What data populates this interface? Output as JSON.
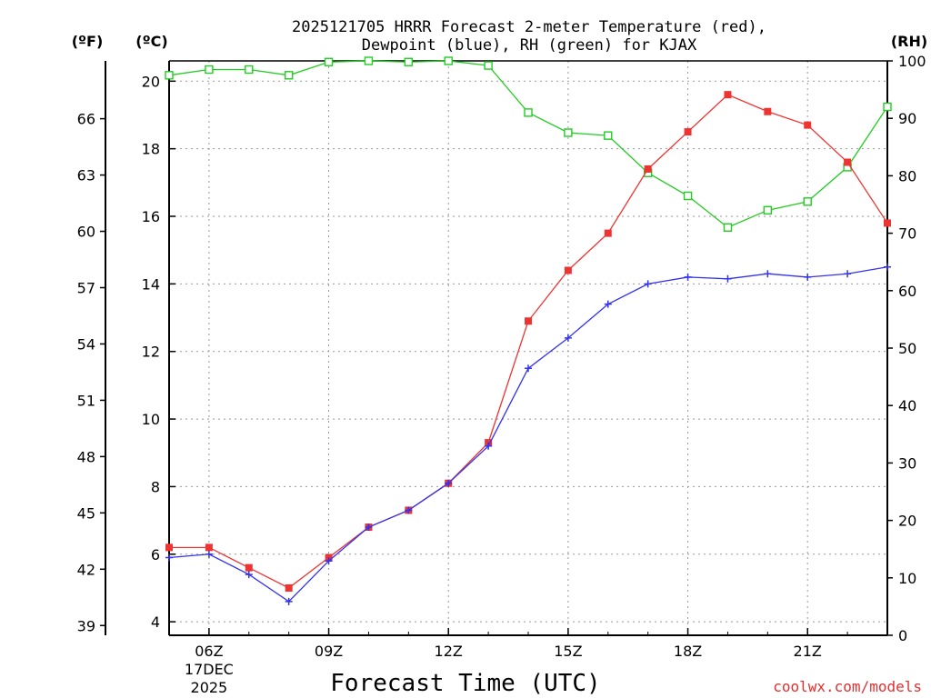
{
  "chart_data": {
    "type": "line",
    "title_line1": "2025121705 HRRR Forecast 2-meter Temperature (red),",
    "title_line2": "Dewpoint (blue), RH (green) for KJAX",
    "unit_f": "(ºF)",
    "unit_c": "(ºC)",
    "unit_rh": "(RH)",
    "xlabel": "Forecast Time (UTC)",
    "credit": "coolwx.com/models",
    "x_hours": [
      5,
      6,
      7,
      8,
      9,
      10,
      11,
      12,
      13,
      14,
      15,
      16,
      17,
      18,
      19,
      20,
      21,
      22,
      23
    ],
    "x_range": [
      5,
      23
    ],
    "x_ticks": [
      {
        "hour": 6,
        "label": "06Z",
        "sub1": "17DEC",
        "sub2": "2025"
      },
      {
        "hour": 9,
        "label": "09Z"
      },
      {
        "hour": 12,
        "label": "12Z"
      },
      {
        "hour": 15,
        "label": "15Z"
      },
      {
        "hour": 18,
        "label": "18Z"
      },
      {
        "hour": 21,
        "label": "21Z"
      }
    ],
    "c_range": [
      3.6,
      20.6
    ],
    "c_ticks": [
      "4",
      "6",
      "8",
      "10",
      "12",
      "14",
      "16",
      "18",
      "20"
    ],
    "f_ticks": [
      "39",
      "42",
      "45",
      "48",
      "51",
      "54",
      "57",
      "60",
      "63",
      "66"
    ],
    "rh_range": [
      0,
      100
    ],
    "rh_ticks": [
      "0",
      "10",
      "20",
      "30",
      "40",
      "50",
      "60",
      "70",
      "80",
      "90",
      "100"
    ],
    "series": [
      {
        "name": "2-meter Temperature",
        "axis": "C",
        "color": "#ee3333",
        "marker": "filled-square",
        "values": [
          6.2,
          6.2,
          5.6,
          5.0,
          5.9,
          6.8,
          7.3,
          8.1,
          9.3,
          12.9,
          14.4,
          15.5,
          17.4,
          18.5,
          19.6,
          19.1,
          18.7,
          17.6,
          15.8
        ]
      },
      {
        "name": "Dewpoint",
        "axis": "C",
        "color": "#3333ee",
        "marker": "plus",
        "values": [
          5.9,
          6.0,
          5.4,
          4.6,
          5.8,
          6.8,
          7.3,
          8.1,
          9.2,
          11.5,
          12.4,
          13.4,
          14.0,
          14.2,
          14.15,
          14.3,
          14.2,
          14.3,
          14.5
        ]
      },
      {
        "name": "Relative Humidity",
        "axis": "RH",
        "color": "#22cc22",
        "marker": "open-square",
        "values": [
          97.5,
          98.5,
          98.5,
          97.5,
          99.8,
          100,
          99.8,
          100,
          99.2,
          91,
          87.5,
          87,
          80.5,
          76.5,
          71,
          74,
          75.5,
          81.5,
          92
        ]
      }
    ]
  }
}
